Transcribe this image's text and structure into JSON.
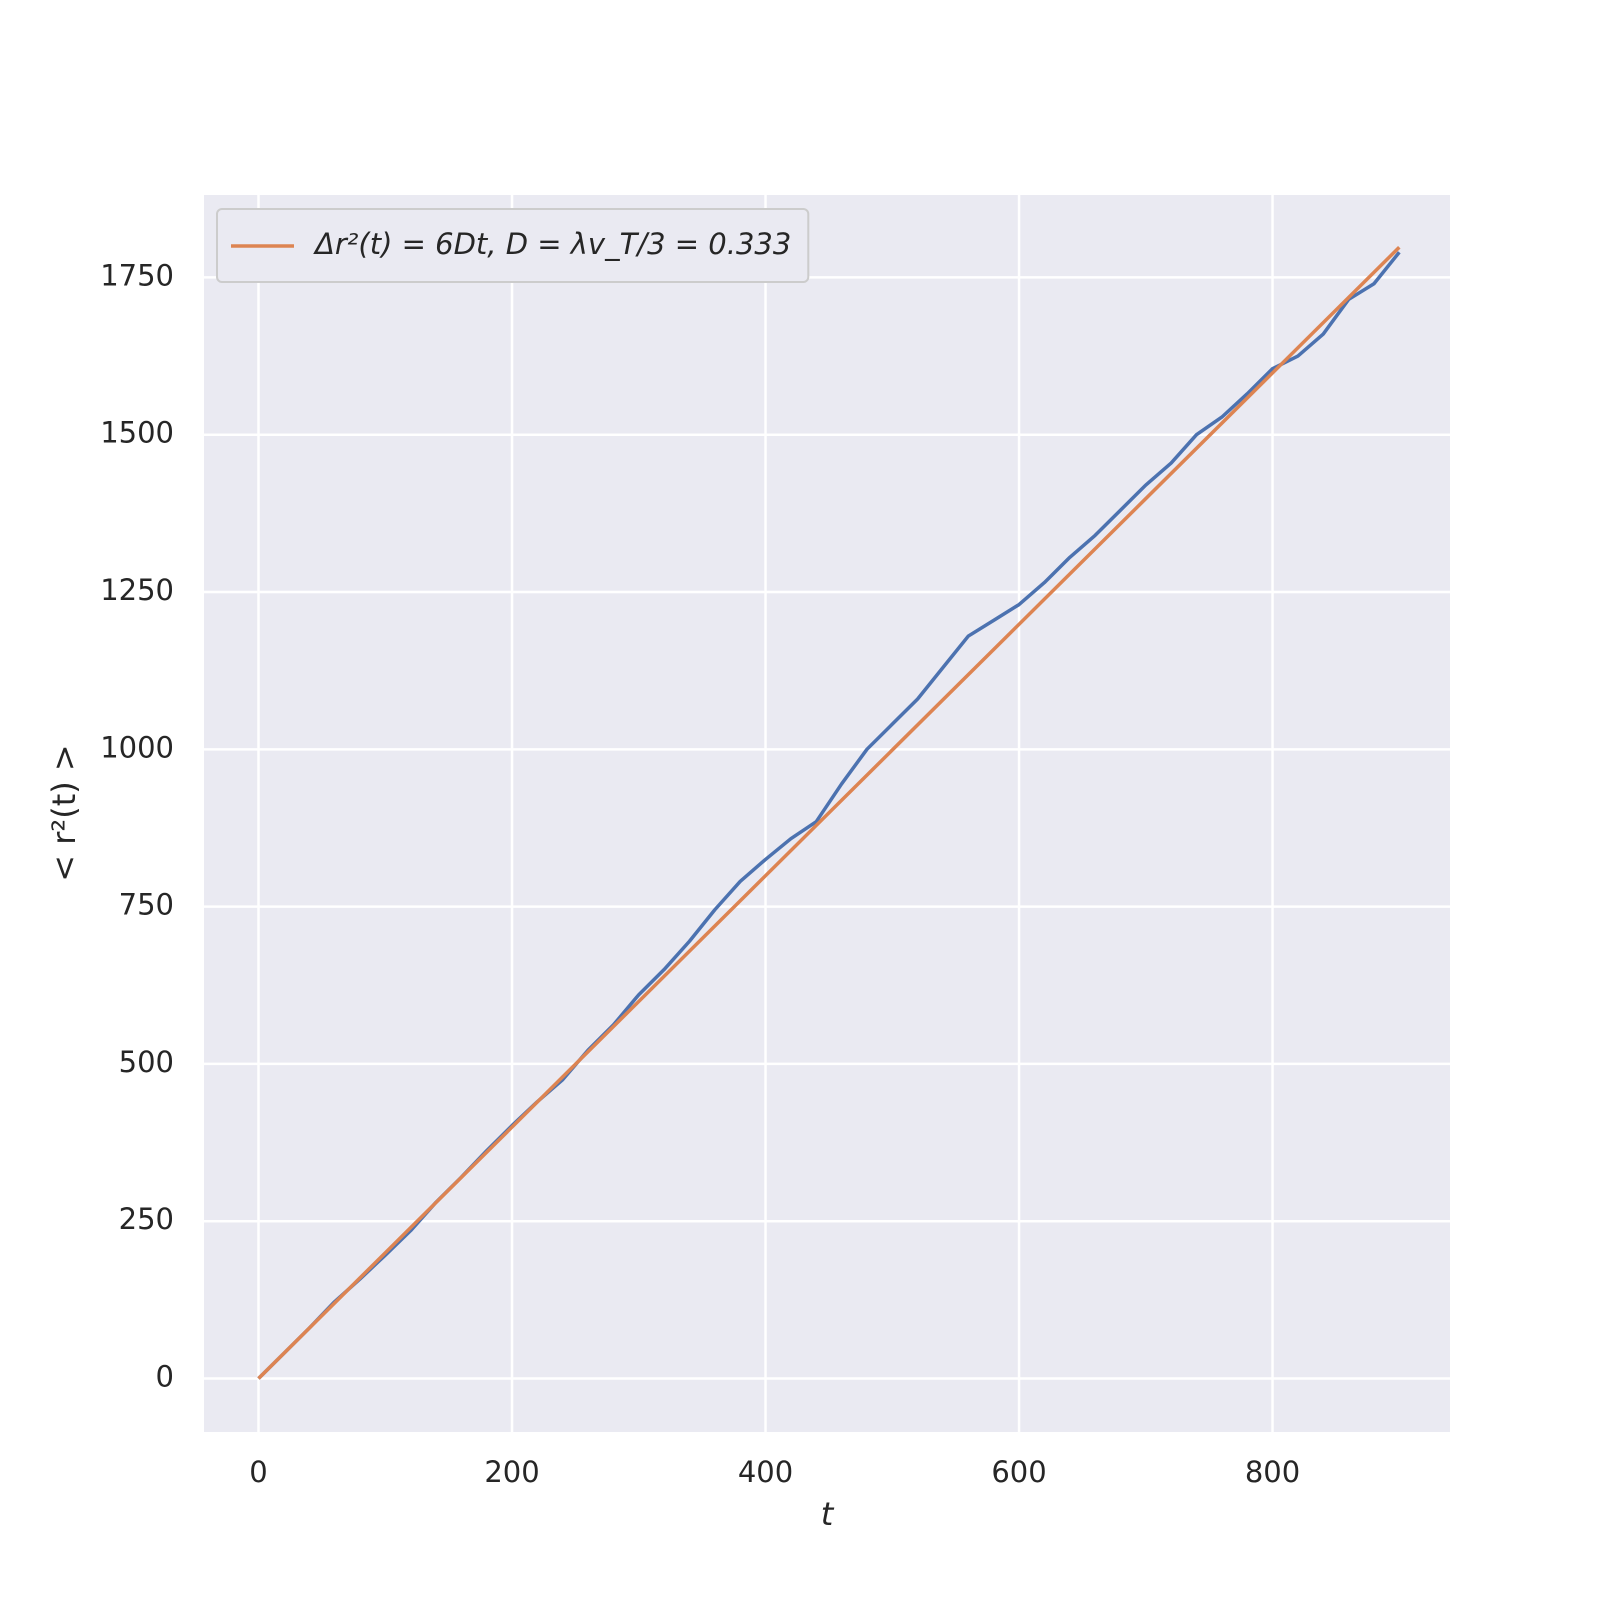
{
  "chart_data": {
    "type": "line",
    "xlabel": "t",
    "ylabel": "< r²(t) >",
    "series": [
      {
        "color": "#4c72b0",
        "x": [
          0,
          20,
          40,
          60,
          80,
          100,
          120,
          140,
          160,
          180,
          200,
          220,
          240,
          260,
          280,
          300,
          320,
          340,
          360,
          380,
          400,
          420,
          440,
          460,
          480,
          500,
          520,
          540,
          560,
          580,
          600,
          620,
          640,
          660,
          680,
          700,
          720,
          740,
          760,
          780,
          800,
          820,
          840,
          860,
          880,
          900
        ],
        "values": [
          0,
          40,
          80,
          122,
          158,
          196,
          235,
          280,
          320,
          362,
          402,
          440,
          475,
          522,
          562,
          610,
          650,
          695,
          745,
          790,
          825,
          858,
          885,
          945,
          1000,
          1040,
          1080,
          1130,
          1180,
          1205,
          1230,
          1265,
          1305,
          1340,
          1380,
          1420,
          1455,
          1500,
          1528,
          1565,
          1605,
          1625,
          1660,
          1715,
          1740,
          1790
        ]
      },
      {
        "name": "Δr²(t) = 6Dt,    D = λv_T/3 = 0.333",
        "color": "#dd8452",
        "x": [
          0,
          900
        ],
        "values": [
          0,
          1798
        ]
      }
    ],
    "xlim": [
      -43,
      940
    ],
    "xticks": [
      0,
      200,
      400,
      600,
      800
    ],
    "ylim": [
      -85,
      1881
    ],
    "yticks": [
      0,
      250,
      500,
      750,
      1000,
      1250,
      1500,
      1750
    ],
    "grid": true,
    "legend": "upper left"
  }
}
